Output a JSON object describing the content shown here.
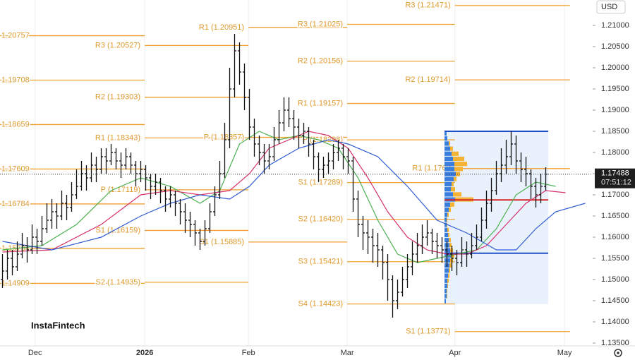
{
  "chart_data": {
    "type": "ohlc",
    "currency": "USD",
    "watermark": "InstaFintech",
    "xlim": [
      -0.5,
      119.5
    ],
    "ylim": [
      1.13433,
      1.216
    ],
    "xticks": [
      {
        "value": 6.6,
        "label": "Dec"
      },
      {
        "value": 28.8,
        "label": "2026"
      },
      {
        "value": 49.8,
        "label": "Feb"
      },
      {
        "value": 69.8,
        "label": "Mar"
      },
      {
        "value": 91.6,
        "label": "Apr"
      },
      {
        "value": 113.8,
        "label": "May"
      }
    ],
    "yticks": [
      {
        "value": 1.135,
        "label": "1.13500"
      },
      {
        "value": 1.14,
        "label": "1.14000"
      },
      {
        "value": 1.145,
        "label": "1.14500"
      },
      {
        "value": 1.15,
        "label": "1.15000"
      },
      {
        "value": 1.155,
        "label": "1.15500"
      },
      {
        "value": 1.16,
        "label": "1.16000"
      },
      {
        "value": 1.165,
        "label": "1.16500"
      },
      {
        "value": 1.17,
        "label": "1.17000"
      },
      {
        "value": 1.175,
        "label": "1.17500"
      },
      {
        "value": 1.18,
        "label": "1.18000"
      },
      {
        "value": 1.185,
        "label": "1.18500"
      },
      {
        "value": 1.19,
        "label": "1.19000"
      },
      {
        "value": 1.195,
        "label": "1.19500"
      },
      {
        "value": 1.2,
        "label": "1.20000"
      },
      {
        "value": 1.205,
        "label": "1.20500"
      },
      {
        "value": 1.21,
        "label": "1.21000"
      }
    ],
    "last_price": 1.17488,
    "countdown": "07:51:12",
    "bars": [
      [
        1.15,
        1.156,
        1.148,
        1.152
      ],
      [
        1.152,
        1.157,
        1.15,
        1.155
      ],
      [
        1.155,
        1.157,
        1.151,
        1.153
      ],
      [
        1.153,
        1.159,
        1.152,
        1.156
      ],
      [
        1.156,
        1.161,
        1.155,
        1.158
      ],
      [
        1.158,
        1.16,
        1.154,
        1.157
      ],
      [
        1.157,
        1.163,
        1.156,
        1.16
      ],
      [
        1.16,
        1.162,
        1.156,
        1.159
      ],
      [
        1.159,
        1.165,
        1.158,
        1.162
      ],
      [
        1.162,
        1.168,
        1.161,
        1.164
      ],
      [
        1.164,
        1.169,
        1.162,
        1.166
      ],
      [
        1.166,
        1.168,
        1.162,
        1.165
      ],
      [
        1.165,
        1.171,
        1.164,
        1.168
      ],
      [
        1.168,
        1.17,
        1.164,
        1.167
      ],
      [
        1.167,
        1.173,
        1.166,
        1.17
      ],
      [
        1.17,
        1.176,
        1.169,
        1.172
      ],
      [
        1.172,
        1.178,
        1.171,
        1.175
      ],
      [
        1.175,
        1.177,
        1.171,
        1.174
      ],
      [
        1.174,
        1.18,
        1.173,
        1.177
      ],
      [
        1.177,
        1.179,
        1.173,
        1.176
      ],
      [
        1.176,
        1.181,
        1.175,
        1.179
      ],
      [
        1.179,
        1.181,
        1.175,
        1.178
      ],
      [
        1.178,
        1.182,
        1.177,
        1.18
      ],
      [
        1.18,
        1.181,
        1.176,
        1.178
      ],
      [
        1.178,
        1.18,
        1.174,
        1.177
      ],
      [
        1.177,
        1.181,
        1.176,
        1.179
      ],
      [
        1.179,
        1.18,
        1.175,
        1.177
      ],
      [
        1.177,
        1.178,
        1.172,
        1.175
      ],
      [
        1.175,
        1.178,
        1.173,
        1.176
      ],
      [
        1.176,
        1.177,
        1.171,
        1.174
      ],
      [
        1.174,
        1.175,
        1.169,
        1.172
      ],
      [
        1.172,
        1.175,
        1.17,
        1.173
      ],
      [
        1.173,
        1.174,
        1.168,
        1.171
      ],
      [
        1.171,
        1.172,
        1.166,
        1.169
      ],
      [
        1.169,
        1.172,
        1.167,
        1.17
      ],
      [
        1.17,
        1.171,
        1.165,
        1.168
      ],
      [
        1.168,
        1.169,
        1.163,
        1.166
      ],
      [
        1.166,
        1.168,
        1.161,
        1.164
      ],
      [
        1.164,
        1.166,
        1.16,
        1.163
      ],
      [
        1.163,
        1.164,
        1.158,
        1.161
      ],
      [
        1.161,
        1.162,
        1.157,
        1.159
      ],
      [
        1.159,
        1.164,
        1.158,
        1.162
      ],
      [
        1.162,
        1.168,
        1.161,
        1.166
      ],
      [
        1.166,
        1.172,
        1.165,
        1.17
      ],
      [
        1.17,
        1.178,
        1.169,
        1.175
      ],
      [
        1.175,
        1.187,
        1.174,
        1.183
      ],
      [
        1.183,
        1.2,
        1.181,
        1.195
      ],
      [
        1.195,
        1.208,
        1.193,
        1.204
      ],
      [
        1.204,
        1.206,
        1.196,
        1.199
      ],
      [
        1.199,
        1.201,
        1.19,
        1.193
      ],
      [
        1.193,
        1.195,
        1.183,
        1.186
      ],
      [
        1.186,
        1.188,
        1.179,
        1.182
      ],
      [
        1.182,
        1.184,
        1.177,
        1.18
      ],
      [
        1.18,
        1.182,
        1.175,
        1.178
      ],
      [
        1.178,
        1.182,
        1.176,
        1.179
      ],
      [
        1.179,
        1.186,
        1.178,
        1.183
      ],
      [
        1.183,
        1.19,
        1.182,
        1.187
      ],
      [
        1.187,
        1.193,
        1.185,
        1.19
      ],
      [
        1.19,
        1.193,
        1.186,
        1.188
      ],
      [
        1.188,
        1.19,
        1.183,
        1.186
      ],
      [
        1.186,
        1.188,
        1.181,
        1.184
      ],
      [
        1.184,
        1.187,
        1.182,
        1.185
      ],
      [
        1.185,
        1.186,
        1.179,
        1.182
      ],
      [
        1.182,
        1.183,
        1.176,
        1.179
      ],
      [
        1.179,
        1.18,
        1.173,
        1.176
      ],
      [
        1.176,
        1.179,
        1.174,
        1.177
      ],
      [
        1.177,
        1.18,
        1.175,
        1.178
      ],
      [
        1.178,
        1.182,
        1.176,
        1.18
      ],
      [
        1.18,
        1.183,
        1.178,
        1.181
      ],
      [
        1.181,
        1.182,
        1.176,
        1.179
      ],
      [
        1.179,
        1.181,
        1.175,
        1.178
      ],
      [
        1.178,
        1.179,
        1.166,
        1.169
      ],
      [
        1.169,
        1.171,
        1.16,
        1.163
      ],
      [
        1.163,
        1.165,
        1.157,
        1.161
      ],
      [
        1.161,
        1.164,
        1.156,
        1.16
      ],
      [
        1.16,
        1.162,
        1.154,
        1.158
      ],
      [
        1.158,
        1.161,
        1.153,
        1.157
      ],
      [
        1.157,
        1.158,
        1.15,
        1.154
      ],
      [
        1.154,
        1.156,
        1.145,
        1.15
      ],
      [
        1.15,
        1.151,
        1.141,
        1.145
      ],
      [
        1.145,
        1.15,
        1.143,
        1.147
      ],
      [
        1.147,
        1.153,
        1.146,
        1.15
      ],
      [
        1.15,
        1.156,
        1.148,
        1.153
      ],
      [
        1.153,
        1.159,
        1.151,
        1.156
      ],
      [
        1.156,
        1.161,
        1.154,
        1.158
      ],
      [
        1.158,
        1.163,
        1.156,
        1.16
      ],
      [
        1.16,
        1.164,
        1.158,
        1.161
      ],
      [
        1.161,
        1.162,
        1.156,
        1.159
      ],
      [
        1.159,
        1.161,
        1.155,
        1.158
      ],
      [
        1.158,
        1.16,
        1.154,
        1.157
      ],
      [
        1.157,
        1.159,
        1.153,
        1.156
      ],
      [
        1.156,
        1.158,
        1.152,
        1.155
      ],
      [
        1.155,
        1.157,
        1.151,
        1.154
      ],
      [
        1.154,
        1.16,
        1.153,
        1.157
      ],
      [
        1.157,
        1.159,
        1.153,
        1.156
      ],
      [
        1.156,
        1.161,
        1.155,
        1.158
      ],
      [
        1.158,
        1.163,
        1.157,
        1.16
      ],
      [
        1.16,
        1.167,
        1.159,
        1.164
      ],
      [
        1.164,
        1.171,
        1.162,
        1.168
      ],
      [
        1.168,
        1.174,
        1.166,
        1.171
      ],
      [
        1.171,
        1.178,
        1.17,
        1.175
      ],
      [
        1.175,
        1.181,
        1.173,
        1.177
      ],
      [
        1.177,
        1.183,
        1.175,
        1.179
      ],
      [
        1.179,
        1.185,
        1.177,
        1.182
      ],
      [
        1.182,
        1.184,
        1.175,
        1.178
      ],
      [
        1.178,
        1.18,
        1.173,
        1.176
      ],
      [
        1.176,
        1.179,
        1.172,
        1.175
      ],
      [
        1.175,
        1.176,
        1.169,
        1.172
      ],
      [
        1.172,
        1.174,
        1.167,
        1.17
      ],
      [
        1.17,
        1.175,
        1.168,
        1.172
      ],
      [
        1.172,
        1.1765,
        1.171,
        1.17488
      ]
    ],
    "series": [
      {
        "color": "#4caf50",
        "x": [
          0,
          8,
          15,
          22,
          28,
          34,
          40,
          44,
          48,
          52,
          56,
          60,
          64,
          68,
          72,
          76,
          80,
          84,
          88,
          92,
          96,
          100,
          104,
          108,
          112
        ],
        "values": [
          1.157,
          1.158,
          1.163,
          1.171,
          1.174,
          1.172,
          1.168,
          1.171,
          1.182,
          1.185,
          1.183,
          1.184,
          1.183,
          1.181,
          1.174,
          1.164,
          1.156,
          1.154,
          1.155,
          1.156,
          1.157,
          1.162,
          1.17,
          1.173,
          1.172
        ]
      },
      {
        "color": "#d6336c",
        "x": [
          0,
          10,
          20,
          28,
          34,
          40,
          46,
          50,
          54,
          58,
          62,
          66,
          70,
          74,
          78,
          82,
          86,
          90,
          94,
          98,
          102,
          106,
          110,
          114
        ],
        "values": [
          1.1565,
          1.157,
          1.163,
          1.17,
          1.171,
          1.17,
          1.171,
          1.175,
          1.181,
          1.183,
          1.185,
          1.184,
          1.181,
          1.174,
          1.166,
          1.16,
          1.157,
          1.156,
          1.156,
          1.158,
          1.163,
          1.168,
          1.171,
          1.1705
        ]
      },
      {
        "color": "#2f5bd3",
        "x": [
          0,
          10,
          20,
          28,
          34,
          40,
          46,
          50,
          54,
          60,
          66,
          70,
          76,
          82,
          88,
          94,
          100,
          104,
          108,
          112,
          118
        ],
        "values": [
          1.159,
          1.157,
          1.16,
          1.165,
          1.168,
          1.17,
          1.169,
          1.172,
          1.177,
          1.181,
          1.183,
          1.182,
          1.179,
          1.172,
          1.164,
          1.161,
          1.157,
          1.157,
          1.162,
          1.166,
          1.168
        ]
      }
    ],
    "pivot_color": "#f0a030",
    "pivots": [
      {
        "start": -0.5,
        "end": 28.8,
        "levels": [
          {
            "label": "1.20757",
            "value": 1.20757
          },
          {
            "label": "1.19708",
            "value": 1.19708
          },
          {
            "label": "1.18659",
            "value": 1.18659
          },
          {
            "label": "1.17609",
            "value": 1.17609
          },
          {
            "label": "1.16784",
            "value": 1.16784
          },
          {
            "label": "1.15734",
            "value": 1.15734
          },
          {
            "label": "1.14909",
            "value": 1.14909
          }
        ]
      },
      {
        "start": 28.8,
        "end": 49.8,
        "levels": [
          {
            "label": "R3 (1.20527)",
            "value": 1.20527
          },
          {
            "label": "R2 (1.19303)",
            "value": 1.19303
          },
          {
            "label": "R1 (1.18343)",
            "value": 1.18343
          },
          {
            "label": "P (1.17119)",
            "value": 1.17119
          },
          {
            "label": "S1 (1.16159)",
            "value": 1.16159
          },
          {
            "label": "S2 (1.14935)",
            "value": 1.14935
          }
        ]
      },
      {
        "start": 49.8,
        "end": 69.8,
        "levels": [
          {
            "label": "R1 (1.20951)",
            "value": 1.20951
          },
          {
            "label": "P (1.18357)",
            "value": 1.18357
          },
          {
            "label": "S1 (1.15885)",
            "value": 1.15885
          }
        ]
      },
      {
        "start": 69.8,
        "end": 91.6,
        "levels": [
          {
            "label": "R3 (1.21025)",
            "value": 1.21025
          },
          {
            "label": "R2 (1.20156)",
            "value": 1.20156
          },
          {
            "label": "R1 (1.19157)",
            "value": 1.19157
          },
          {
            "label": "P (1.18298)",
            "value": 1.18298
          },
          {
            "label": "S1 (1.17289)",
            "value": 1.17289
          },
          {
            "label": "S2 (1.16420)",
            "value": 1.1642
          },
          {
            "label": "S3 (1.15421)",
            "value": 1.15421
          },
          {
            "label": "S4 (1.14423)",
            "value": 1.14423
          }
        ]
      },
      {
        "start": 91.6,
        "end": 114.9,
        "levels": [
          {
            "label": "R3 (1.21471)",
            "value": 1.21471
          },
          {
            "label": "R2 (1.19714)",
            "value": 1.19714
          },
          {
            "label": "R1 (1.1762",
            "value": 1.1762
          },
          {
            "label": "S1 (1.13771)",
            "value": 1.13771
          }
        ]
      }
    ],
    "value_area": {
      "start": 89.5,
      "end": 110.5,
      "high": 1.185,
      "low": 1.1442,
      "poc": 1.1688,
      "val": 1.1562
    },
    "profile": {
      "prices": [
        1.1845,
        1.1833,
        1.1821,
        1.1809,
        1.1797,
        1.1785,
        1.1773,
        1.1761,
        1.1749,
        1.1737,
        1.1725,
        1.1713,
        1.1701,
        1.1689,
        1.1677,
        1.1665,
        1.1653,
        1.1641,
        1.1629,
        1.1617,
        1.1605,
        1.1593,
        1.1581,
        1.1569,
        1.1557,
        1.1545,
        1.1533,
        1.1521,
        1.1509,
        1.1497,
        1.1485,
        1.1473,
        1.1461,
        1.1449
      ],
      "series": [
        {
          "color": "#3b7ddd",
          "values": [
            3,
            4,
            6,
            8,
            10,
            12,
            14,
            14,
            16,
            13,
            10,
            9,
            12,
            15,
            8,
            6,
            4,
            3,
            3,
            4,
            5,
            6,
            7,
            8,
            9,
            8,
            7,
            6,
            5,
            4,
            4,
            3,
            3,
            2
          ]
        },
        {
          "color": "#f5b335",
          "values": [
            0,
            0,
            2,
            4,
            10,
            16,
            18,
            12,
            6,
            4,
            3,
            6,
            12,
            26,
            6,
            3,
            2,
            1,
            1,
            2,
            2,
            3,
            3,
            4,
            5,
            4,
            3,
            2,
            2,
            2,
            1,
            1,
            1,
            0
          ]
        }
      ]
    }
  }
}
